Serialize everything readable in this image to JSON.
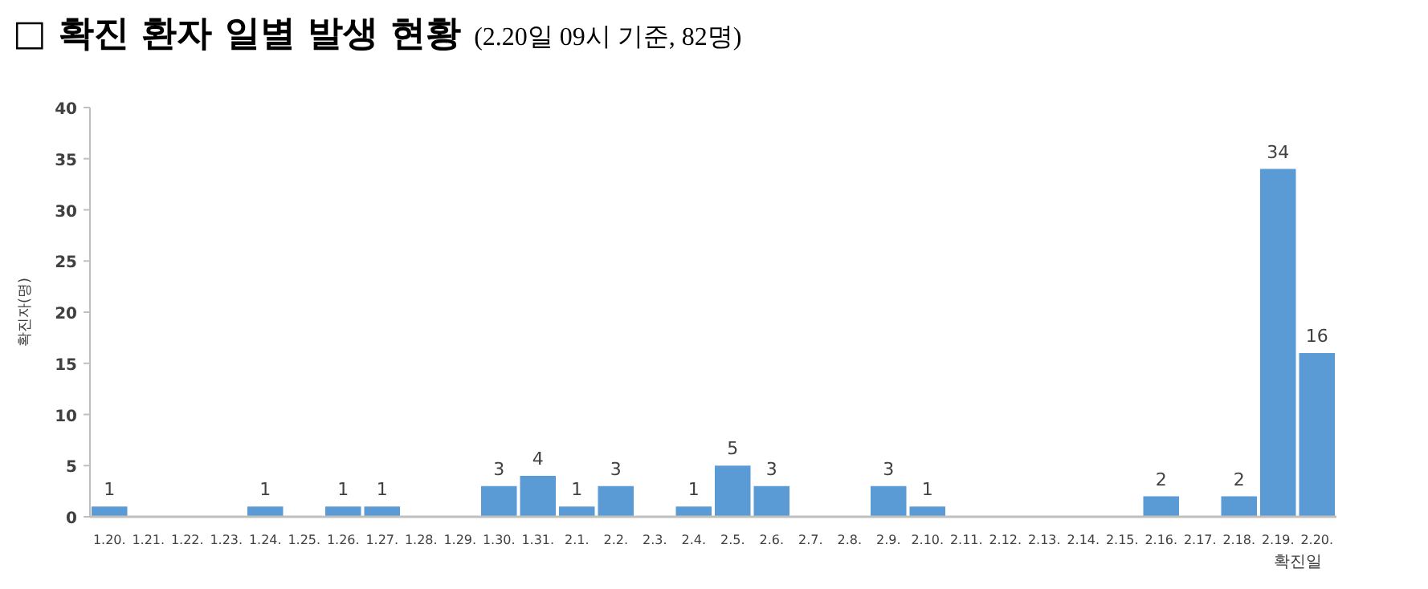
{
  "chart_data": {
    "type": "bar",
    "title": "□ 확진 환자 일별 발생 현황",
    "subtitle": "(2.20일 09시 기준, 82명)",
    "ylabel": "확진자(명)",
    "xlabel": "확진일",
    "categories": [
      "1.20.",
      "1.21.",
      "1.22.",
      "1.23.",
      "1.24.",
      "1.25.",
      "1.26.",
      "1.27.",
      "1.28.",
      "1.29.",
      "1.30.",
      "1.31.",
      "2.1.",
      "2.2.",
      "2.3.",
      "2.4.",
      "2.5.",
      "2.6.",
      "2.7.",
      "2.8.",
      "2.9.",
      "2.10.",
      "2.11.",
      "2.12.",
      "2.13.",
      "2.14.",
      "2.15.",
      "2.16.",
      "2.17.",
      "2.18.",
      "2.19.",
      "2.20."
    ],
    "values": [
      1,
      0,
      0,
      0,
      1,
      0,
      1,
      1,
      0,
      0,
      3,
      4,
      1,
      3,
      0,
      1,
      5,
      3,
      0,
      0,
      3,
      1,
      0,
      0,
      0,
      0,
      0,
      2,
      0,
      2,
      34,
      16
    ],
    "value_labels": [
      "1",
      null,
      null,
      null,
      "1",
      null,
      "1",
      "1",
      null,
      null,
      "3",
      "4",
      "1",
      "3",
      null,
      "1",
      "5",
      "3",
      null,
      null,
      "3",
      "1",
      null,
      null,
      null,
      null,
      null,
      "2",
      null,
      "2",
      "34",
      "16"
    ],
    "color": "#5b9bd5",
    "ylim": [
      0,
      40
    ],
    "yticks": [
      0,
      5,
      10,
      15,
      20,
      25,
      30,
      35,
      40
    ],
    "grid": false
  }
}
